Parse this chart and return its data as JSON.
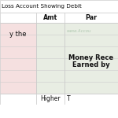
{
  "title": "Loss Account Showing Debit",
  "col_headers": [
    "",
    "Amt",
    "Par"
  ],
  "left_bg": "#f5e0e0",
  "right_bg": "#e8ede3",
  "header_bg": "#ffffff",
  "border_color": "#cccccc",
  "left_text": "y the",
  "right_text_line1": "Money Rece",
  "right_text_line2": "Earned by",
  "watermark": "www.Accou",
  "bottom_left_text": "Higher",
  "bottom_right_text": "T",
  "title_color": "#111111",
  "text_color": "#111111",
  "watermark_color": "#b0c8b0",
  "row_count": 6,
  "figsize": [
    1.5,
    1.5
  ],
  "dpi": 100
}
